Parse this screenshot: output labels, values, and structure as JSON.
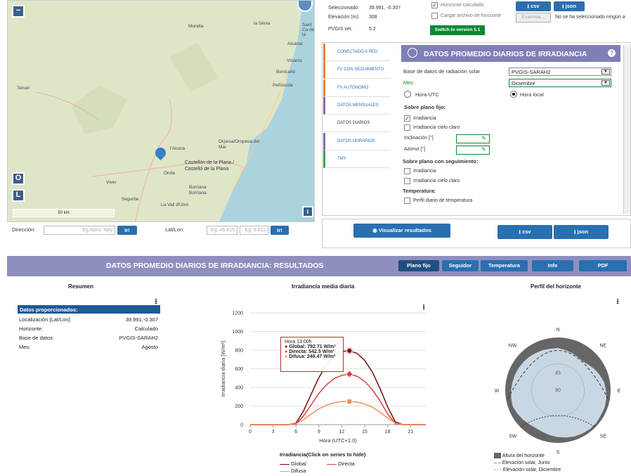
{
  "info": {
    "selected_label": "Seleccionado:",
    "selected_value": "39.991, -0.307",
    "elevation_label": "Elevación (m):",
    "elevation_value": "308",
    "version_label": "PVGIS ver.",
    "version_value": "5.2",
    "switch_button": "Switch to version 5.1"
  },
  "horizon": {
    "calculated_label": "Horizonte calculado",
    "calculated_checked": true,
    "upload_label": "Cargar archivo de horizonte",
    "browse_button": "Examinar...",
    "no_file_text": "No se ha seleccionado ningún a",
    "csv_button": "csv",
    "json_button": "json"
  },
  "map": {
    "towns": [
      "Morella",
      "la Sénia",
      "Sant Ca de la",
      "Alcanar",
      "Vinaròs",
      "Benicarló",
      "Peñíscola",
      "Teruel",
      "Orpesa/Oropesa del Mar",
      "l'Alcora",
      "Castellón de la Plana / Castelló de la Plana",
      "Onda",
      "Viver",
      "Burriana Borriana",
      "Segorbe",
      "La Vall d'Uixó"
    ],
    "scale": "50 km",
    "zoom_out": "−",
    "btn_o": "O",
    "btn_l": "L",
    "info_btn": "i"
  },
  "search": {
    "address_label": "Dirección:",
    "address_placeholder": "Eg.Ispra, Italy",
    "go": "Ir!",
    "latlon_label": "Lat/Lon:",
    "lat_placeholder": "Eg: 45.815",
    "lon_placeholder": "Eg: 8.611"
  },
  "tabs": [
    "CONECTADO A RED",
    "FV CON SEGUIMIENTO",
    "FV AUTÓNOMO",
    "DATOS MENSUALES",
    "DATOS DIARIOS",
    "DATOS HORARIOS",
    "TMY"
  ],
  "tab_colors": [
    "#e8823a",
    "#e8823a",
    "#e8823a",
    "#8a6ab0",
    "#ffffff",
    "#8a6ab0",
    "#3aa34a"
  ],
  "form": {
    "title": "DATOS PROMEDIO DIARIOS DE IRRADIANCIA",
    "help": "?",
    "db_label": "Base de datos de radiación solar",
    "db_value": "PVGIS-SARAH2",
    "month_label": "Mes",
    "month_value": "Diciembre",
    "utc_label": "Hora UTC",
    "local_label": "Hora local",
    "fixed_heading": "Sobre plano fijo:",
    "irr_label": "Irradiancia",
    "clear_label": "Irradiancia cielo claro",
    "incl_label": "Inclinación [°]",
    "azimuth_label": "Azimut [°]",
    "tracking_heading": "Sobre plano con seguimiento:",
    "irr2_label": "Irradiancia",
    "clear2_label": "Irradiancia cielo claro",
    "temp_heading": "Temperatura:",
    "temp_label": "Perfil diario de temperatura"
  },
  "actions": {
    "visualize": "Visualizar resultados",
    "csv": "csv",
    "json": "json"
  },
  "results": {
    "title": "DATOS PROMEDIO DIARIOS DE IRRADIANCIA: RESULTADOS",
    "tabs": [
      "Plano fijo",
      "Seguidor",
      "Temperatura",
      "Info",
      "PDF"
    ]
  },
  "summary": {
    "title": "Resumen",
    "header": "Datos proporcionados:",
    "rows": [
      {
        "k": "Localización [Lat/Lon]:",
        "v": "39.991,-0.307"
      },
      {
        "k": "Horizonte:",
        "v": "Calculado"
      },
      {
        "k": "Base de datos:",
        "v": "PVGIS-SARAH2"
      },
      {
        "k": "Mes:",
        "v": "Agosto"
      }
    ]
  },
  "chart_data": {
    "type": "line",
    "title": "Irradiancia media diaria",
    "xlabel": "Hora (UTC+1.0)",
    "ylabel": "Irradiancia diaria [W/m²]",
    "xlim": [
      0,
      23
    ],
    "ylim": [
      0,
      1200
    ],
    "xticks": [
      0,
      3,
      6,
      9,
      12,
      15,
      18,
      21
    ],
    "yticks": [
      0,
      200,
      400,
      600,
      800,
      1000,
      1200
    ],
    "x": [
      0,
      1,
      2,
      3,
      4,
      5,
      6,
      7,
      8,
      9,
      10,
      11,
      12,
      13,
      14,
      15,
      16,
      17,
      18,
      19,
      20,
      21,
      22,
      23
    ],
    "series": [
      {
        "name": "Global",
        "color": "#7a0a0a",
        "values": [
          0,
          0,
          0,
          0,
          0,
          0,
          15,
          150,
          330,
          505,
          645,
          740,
          785,
          793,
          765,
          690,
          565,
          390,
          190,
          30,
          0,
          0,
          0,
          0
        ]
      },
      {
        "name": "Directa",
        "color": "#d94040",
        "values": [
          0,
          0,
          0,
          0,
          0,
          0,
          5,
          95,
          215,
          335,
          430,
          495,
          530,
          543,
          520,
          465,
          375,
          255,
          115,
          12,
          0,
          0,
          0,
          0
        ]
      },
      {
        "name": "Difusa",
        "color": "#f0925a",
        "values": [
          0,
          0,
          0,
          0,
          0,
          0,
          10,
          55,
          115,
          170,
          210,
          235,
          248,
          249,
          242,
          222,
          188,
          133,
          72,
          17,
          0,
          0,
          0,
          0
        ]
      }
    ],
    "legend_title": "Irradiancia(Click on series to hide)",
    "tooltip": {
      "title": "Hora 13:00h",
      "rows": [
        "Global: 792.71 W/m²",
        "Directa: 542.5 W/m²",
        "Difusa: 249.47 W/m²"
      ]
    }
  },
  "horizon_chart": {
    "title": "Perfil del horizonte",
    "directions": [
      "N",
      "NE",
      "E",
      "SE",
      "S",
      "SW",
      "W",
      "NW"
    ],
    "rings": [
      "45",
      "90"
    ],
    "legend": [
      "Altura del horizonte",
      "Elevación solar, Junio",
      "Elevación solar, Diciembre"
    ]
  }
}
